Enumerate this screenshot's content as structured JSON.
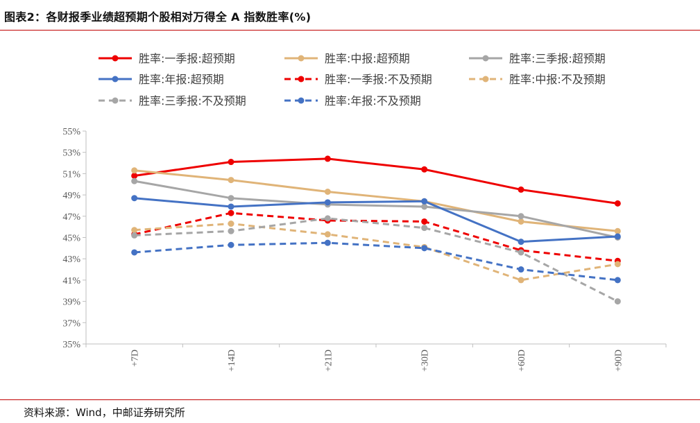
{
  "title": "图表2：各财报季业绩超预期个股相对万得全 A 指数胜率(%)",
  "source": "资料来源：Wind，中邮证券研究所",
  "chart_data": {
    "type": "line",
    "title": "图表2：各财报季业绩超预期个股相对万得全 A 指数胜率(%)",
    "xlabel": "",
    "ylabel": "",
    "categories": [
      "+7D",
      "+14D",
      "+21D",
      "+30D",
      "+60D",
      "+90D"
    ],
    "yticks": [
      "35%",
      "37%",
      "39%",
      "41%",
      "43%",
      "45%",
      "47%",
      "49%",
      "51%",
      "53%",
      "55%"
    ],
    "ylim": [
      35,
      55
    ],
    "grid": false,
    "legend_position": "top",
    "series": [
      {
        "name": "胜率:一季报:超预期",
        "color": "#ee0000",
        "dashed": false,
        "values": [
          50.8,
          52.1,
          52.4,
          51.4,
          49.5,
          48.2
        ]
      },
      {
        "name": "胜率:中报:超预期",
        "color": "#e0b478",
        "dashed": false,
        "values": [
          51.3,
          50.4,
          49.3,
          48.4,
          46.5,
          45.6
        ]
      },
      {
        "name": "胜率:三季报:超预期",
        "color": "#a6a6a6",
        "dashed": false,
        "values": [
          50.3,
          48.7,
          48.1,
          47.9,
          47.0,
          45.0
        ]
      },
      {
        "name": "胜率:年报:超预期",
        "color": "#4472c4",
        "dashed": false,
        "values": [
          48.7,
          47.9,
          48.3,
          48.4,
          44.6,
          45.1
        ]
      },
      {
        "name": "胜率:一季报:不及预期",
        "color": "#ee0000",
        "dashed": true,
        "values": [
          45.3,
          47.3,
          46.6,
          46.5,
          43.8,
          42.8
        ]
      },
      {
        "name": "胜率:中报:不及预期",
        "color": "#e0b478",
        "dashed": true,
        "values": [
          45.7,
          46.3,
          45.3,
          44.1,
          41.0,
          42.5
        ]
      },
      {
        "name": "胜率:三季报:不及预期",
        "color": "#a6a6a6",
        "dashed": true,
        "values": [
          45.2,
          45.6,
          46.8,
          45.9,
          43.6,
          39.0
        ]
      },
      {
        "name": "胜率:年报:不及预期",
        "color": "#4472c4",
        "dashed": true,
        "values": [
          43.6,
          44.3,
          44.5,
          44.0,
          42.0,
          41.0
        ]
      }
    ]
  }
}
